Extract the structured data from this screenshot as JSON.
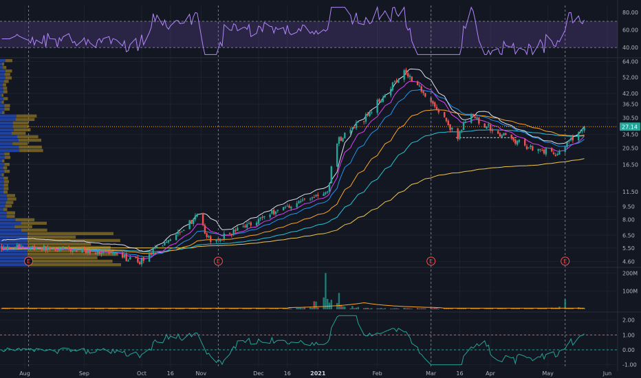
{
  "chart_data": {
    "type": "candlestick",
    "price_panel": {
      "scale": "log",
      "ylim": [
        4.3,
        66
      ],
      "y_ticks": [
        "64.00",
        "52.00",
        "42.00",
        "36.50",
        "30.50",
        "24.50",
        "20.50",
        "16.50",
        "11.50",
        "9.50",
        "8.00",
        "6.50",
        "5.50",
        "4.60"
      ],
      "last_price": "27.14",
      "x_axis_ticks": [
        "Aug",
        "Sep",
        "Oct",
        "16",
        "Nov",
        "Dec",
        "16",
        "2021",
        "Feb",
        "Mar",
        "16",
        "Apr",
        "May",
        "Jun"
      ],
      "key_points": [
        {
          "date": "2020-07-27",
          "close": 5.6
        },
        {
          "date": "2020-09-10",
          "close": 5.2
        },
        {
          "date": "2020-09-30",
          "close": 4.6
        },
        {
          "date": "2020-10-20",
          "close": 6.8
        },
        {
          "date": "2020-10-30",
          "close": 8.3
        },
        {
          "date": "2020-11-06",
          "close": 5.9
        },
        {
          "date": "2020-11-20",
          "close": 7.0
        },
        {
          "date": "2020-12-10",
          "close": 9.0
        },
        {
          "date": "2020-12-31",
          "close": 11.0
        },
        {
          "date": "2021-01-06",
          "close": 11.2
        },
        {
          "date": "2021-01-10",
          "close": 22.0
        },
        {
          "date": "2021-01-25",
          "close": 30.0
        },
        {
          "date": "2021-02-15",
          "close": 57.0
        },
        {
          "date": "2021-02-25",
          "close": 43.0
        },
        {
          "date": "2021-03-08",
          "close": 30.0
        },
        {
          "date": "2021-03-15",
          "close": 23.0
        },
        {
          "date": "2021-03-20",
          "close": 32.0
        },
        {
          "date": "2021-04-05",
          "close": 25.0
        },
        {
          "date": "2021-04-20",
          "close": 21.0
        },
        {
          "date": "2021-05-05",
          "close": 19.0
        },
        {
          "date": "2021-05-12",
          "close": 22.0
        },
        {
          "date": "2021-05-20",
          "close": 27.14
        }
      ],
      "earnings_dates": [
        "2020-08-03",
        "2020-11-10",
        "2021-03-01",
        "2021-05-10"
      ],
      "earnings_label": "E",
      "horizontal_level": 27.14,
      "dashed_level": 23.5
    },
    "rsi_panel": {
      "y_ticks": [
        "80.00",
        "60.00",
        "40.00"
      ],
      "band": [
        40,
        70
      ]
    },
    "volume_panel": {
      "y_ticks": [
        "200M",
        "100M"
      ],
      "spikes": [
        {
          "date": "2021-01-05",
          "value": 200
        },
        {
          "date": "2021-01-12",
          "value": 90
        },
        {
          "date": "2021-05-10",
          "value": 55
        }
      ]
    },
    "oscillator_panel": {
      "y_ticks": [
        "2.00",
        "1.00",
        "0.00",
        "-1.00"
      ],
      "dashed_levels": [
        1.0,
        0.0
      ]
    },
    "colors": {
      "background": "#131722",
      "up": "#26a69a",
      "down": "#ef5350",
      "rsi": "#b388ff",
      "rsi_band": "#7e57c2",
      "ma_white": "#e0e3eb",
      "ma_pink": "#e040fb",
      "ma_orange": "#ffa726",
      "ma_blue": "#2196f3",
      "ma_teal": "#26c6da",
      "ma_yellow": "#f2c94c",
      "volume_profile_blue": "#2962ff",
      "volume_profile_gold": "#c9a227",
      "earnings": "#ff5252"
    }
  }
}
